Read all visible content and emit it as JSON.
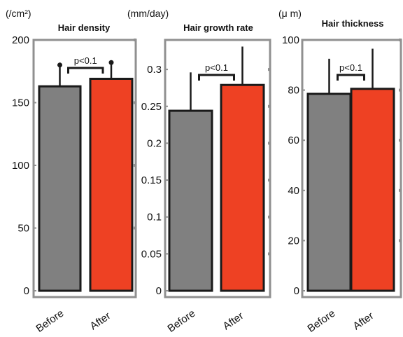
{
  "colors": {
    "before": "#808080",
    "after": "#ee4123",
    "after_label": "#e8402a",
    "frame": "#909090",
    "bar_edge": "#1a1a1a",
    "error": "#1a1a1a"
  },
  "chart_data": [
    {
      "type": "bar",
      "title": "Hair density",
      "unit": "(/cm²)",
      "categories": [
        "Before",
        "After"
      ],
      "values": [
        163,
        169
      ],
      "errors": [
        17,
        13
      ],
      "ylim": [
        0,
        200
      ],
      "yticks": [
        0,
        50,
        100,
        150,
        200
      ],
      "ytick_labels": [
        "0",
        "50",
        "100",
        "150",
        "200"
      ],
      "significance": "p<0.1",
      "grid": false
    },
    {
      "type": "bar",
      "title": "Hair growth rate",
      "unit": "(mm/day)",
      "categories": [
        "Before",
        "After"
      ],
      "values": [
        0.244,
        0.279
      ],
      "errors": [
        0.052,
        0.052
      ],
      "ylim": [
        0,
        0.34
      ],
      "yticks": [
        0,
        0.05,
        0.1,
        0.15,
        0.2,
        0.25,
        0.3
      ],
      "ytick_labels": [
        "0",
        "0.05",
        "0.1",
        "0.15",
        "0.2",
        "0.25",
        "0.3"
      ],
      "significance": "p<0.1",
      "grid": false
    },
    {
      "type": "bar",
      "title": "Hair thickness",
      "unit": "(μ m)",
      "categories": [
        "Before",
        "After"
      ],
      "values": [
        78.5,
        80.5
      ],
      "errors": [
        14,
        16
      ],
      "ylim": [
        0,
        100
      ],
      "yticks": [
        0,
        20,
        40,
        60,
        80,
        100
      ],
      "ytick_labels": [
        "0",
        "20",
        "40",
        "60",
        "80",
        "100"
      ],
      "significance": "p<0.1",
      "grid": false
    }
  ]
}
